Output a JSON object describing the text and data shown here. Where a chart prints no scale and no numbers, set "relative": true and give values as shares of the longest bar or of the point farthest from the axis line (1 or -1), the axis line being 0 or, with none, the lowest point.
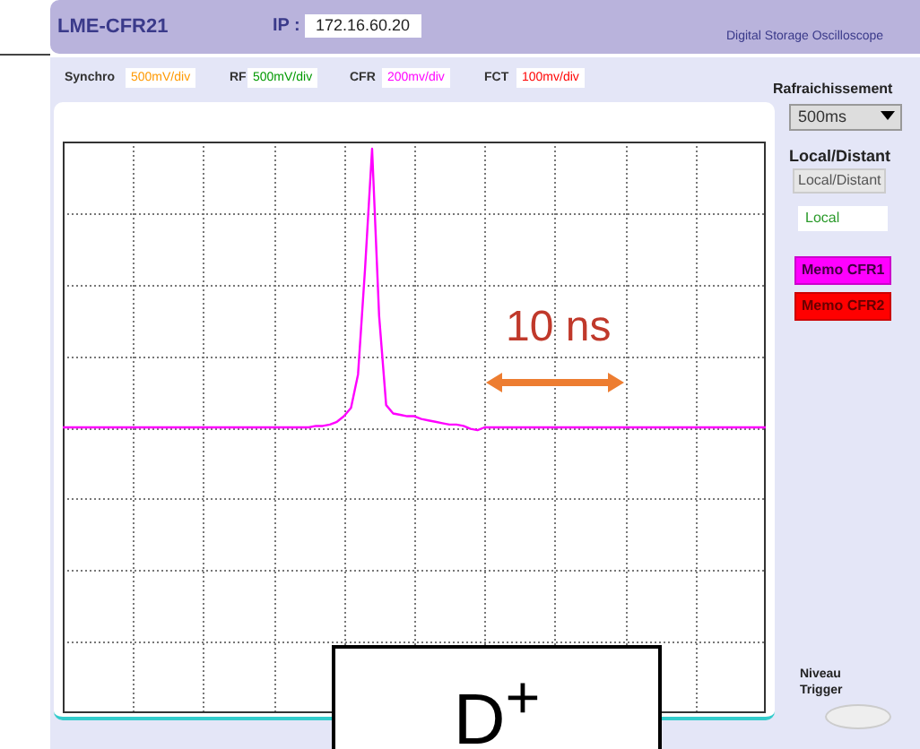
{
  "chart_data": {
    "type": "line",
    "relative": true,
    "grid": true,
    "legend": false,
    "marker": "none",
    "line_style": "solid",
    "categories": [
      null,
      null,
      null,
      null,
      null,
      null,
      null,
      null,
      null,
      null,
      null,
      null,
      null,
      null,
      null,
      null,
      null,
      null,
      null,
      null,
      null,
      null,
      null,
      null,
      null,
      null,
      null,
      null,
      null,
      null,
      null,
      null,
      null,
      null,
      null,
      null,
      null,
      null,
      null,
      null,
      null,
      null,
      null,
      null,
      null,
      null,
      null,
      null,
      null,
      null,
      null,
      null,
      null,
      null,
      null,
      null,
      null,
      null,
      null,
      null,
      null,
      null,
      null,
      null,
      null,
      null,
      null,
      null,
      null,
      null,
      null,
      null,
      null,
      null,
      null,
      null,
      null,
      null,
      null,
      null,
      null,
      null,
      null,
      null,
      null,
      null,
      null,
      null,
      null,
      null,
      null,
      null,
      null,
      null,
      null,
      null,
      null,
      null,
      null,
      null,
      null
    ],
    "series": [
      {
        "color": "#ff00ff",
        "values": [
          0,
          0,
          0,
          0,
          0,
          0,
          0,
          0,
          0,
          0,
          0,
          0,
          0,
          0,
          0,
          0,
          0,
          0,
          0,
          0,
          0,
          0,
          0,
          0,
          0,
          0,
          0,
          0,
          0,
          0,
          0,
          0,
          0,
          0,
          0,
          0,
          0.005,
          0.005,
          0.01,
          0.02,
          0.04,
          0.07,
          0.19,
          0.57,
          1,
          0.4,
          0.08,
          0.05,
          0.045,
          0.04,
          0.04,
          0.03,
          0.025,
          0.02,
          0.015,
          0.01,
          0.01,
          0.005,
          -0.005,
          -0.01,
          0,
          0,
          0,
          0,
          0,
          0,
          0,
          0,
          0,
          0,
          0,
          0,
          0,
          0,
          0,
          0,
          0,
          0,
          0,
          0,
          0,
          0,
          0,
          0,
          0,
          0,
          0,
          0,
          0,
          0,
          0,
          0,
          0,
          0,
          0,
          0,
          0,
          0,
          0,
          0,
          0
        ]
      }
    ],
    "annotations": [
      "LME-CFR21",
      "IP :",
      "172.16.60.20",
      "Digital Storage Oscilloscope",
      "Synchro",
      "500mV/div",
      "RF",
      "500mV/div",
      "CFR",
      "200mv/div",
      "FCT",
      "100mv/div",
      "Rafraichissement",
      "500ms",
      "Local/Distant",
      "Local/Distant",
      "Local",
      "Memo CFR1",
      "Memo CFR2",
      "Niveau Trigger",
      "10 ns",
      "D$^{+}$"
    ]
  }
}
